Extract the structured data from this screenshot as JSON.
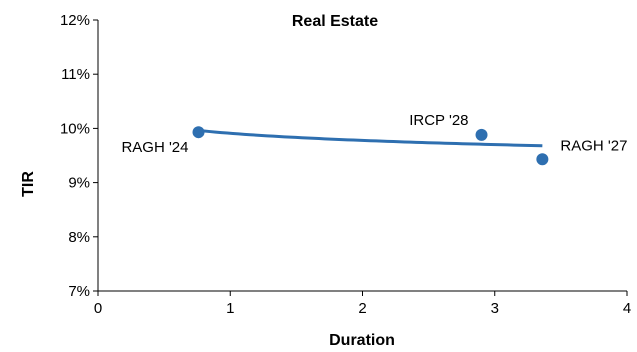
{
  "chart_data": {
    "type": "scatter",
    "title": "Real Estate",
    "xlabel": "Duration",
    "ylabel": "TIR",
    "xlim": [
      0,
      4
    ],
    "ylim": [
      7,
      12
    ],
    "x_ticks": [
      0,
      1,
      2,
      3,
      4
    ],
    "y_ticks": [
      7,
      8,
      9,
      10,
      11,
      12
    ],
    "x_tick_labels": [
      "0",
      "1",
      "2",
      "3",
      "4"
    ],
    "y_tick_labels": [
      "7%",
      "8%",
      "9%",
      "10%",
      "11%",
      "12%"
    ],
    "grid": false,
    "legend": "none",
    "points": [
      {
        "label": "RAGH '24",
        "x": 0.76,
        "y": 9.93
      },
      {
        "label": "IRCP '28",
        "x": 2.9,
        "y": 9.88
      },
      {
        "label": "RAGH '27",
        "x": 3.36,
        "y": 9.43
      }
    ],
    "trendline": {
      "type": "logarithmic",
      "x_range": [
        0.76,
        3.36
      ],
      "a": 9.91,
      "b": -0.19
    },
    "colors": {
      "series": "#2e6fb0",
      "axis": "#000000"
    }
  }
}
